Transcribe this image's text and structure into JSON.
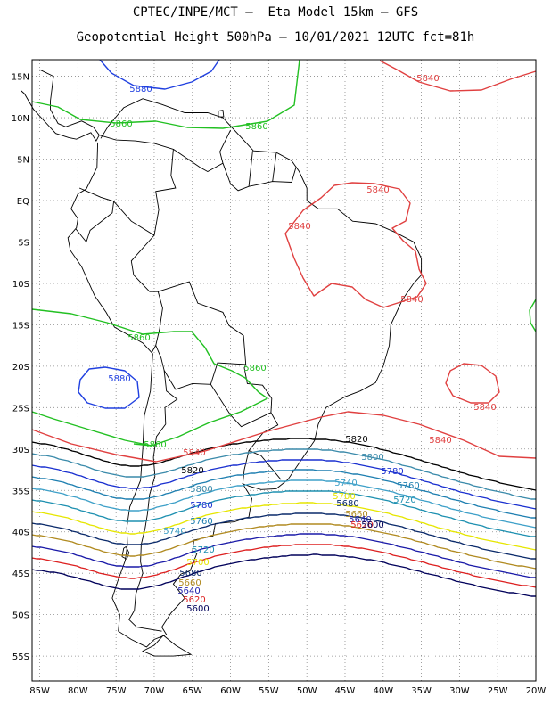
{
  "title": {
    "line1": "CPTEC/INPE/MCT –  Eta Model 15km – GFS",
    "line2": "Geopotential Height 500hPa – 10/01/2021 12UTC fct=81h"
  },
  "axes": {
    "lat_labels": [
      "15N",
      "10N",
      "5N",
      "EQ",
      "5S",
      "10S",
      "15S",
      "20S",
      "25S",
      "30S",
      "35S",
      "40S",
      "45S",
      "50S",
      "55S"
    ],
    "lon_labels": [
      "85W",
      "80W",
      "75W",
      "70W",
      "65W",
      "60W",
      "55W",
      "50W",
      "45W",
      "40W",
      "35W",
      "30W",
      "25W",
      "20W"
    ],
    "lat_range": [
      -58,
      17
    ],
    "lon_range": [
      -86,
      -20
    ],
    "grid": "dotted"
  },
  "contour_colors": {
    "5600": "#00005a",
    "5620": "#dd2020",
    "5640": "#1a1aa8",
    "5660": "#b08a20",
    "5680": "#0a2a6a",
    "5700": "#e6e600",
    "5720": "#1e90b0",
    "5740": "#3ea0c8",
    "5760": "#1e7fb0",
    "5780": "#1a30d0",
    "5800": "#3a8aaa",
    "5820": "#000000",
    "5840": "#e04040",
    "5860": "#22c022",
    "5880": "#2040e0"
  },
  "contour_labels": [
    {
      "text": "5880",
      "color": "#2040e0"
    },
    {
      "text": "5860",
      "color": "#22c022"
    },
    {
      "text": "5860",
      "color": "#22c022"
    },
    {
      "text": "5840",
      "color": "#e04040"
    },
    {
      "text": "5840",
      "color": "#e04040"
    },
    {
      "text": "5840",
      "color": "#e04040"
    },
    {
      "text": "5840",
      "color": "#e04040"
    },
    {
      "text": "5860",
      "color": "#22c022"
    },
    {
      "text": "5880",
      "color": "#2040e0"
    },
    {
      "text": "5860",
      "color": "#22c022"
    },
    {
      "text": "5840",
      "color": "#e04040"
    },
    {
      "text": "5860",
      "color": "#22c022"
    },
    {
      "text": "5840",
      "color": "#e04040"
    },
    {
      "text": "5840",
      "color": "#e04040"
    },
    {
      "text": "5820",
      "color": "#000000"
    },
    {
      "text": "5820",
      "color": "#000000"
    },
    {
      "text": "5800",
      "color": "#3a8aaa"
    },
    {
      "text": "5780",
      "color": "#1a30d0"
    },
    {
      "text": "5800",
      "color": "#3a8aaa"
    },
    {
      "text": "5760",
      "color": "#1e7fb0"
    },
    {
      "text": "5740",
      "color": "#3ea0c8"
    },
    {
      "text": "5720",
      "color": "#1e90b0"
    },
    {
      "text": "5780",
      "color": "#1a30d0"
    },
    {
      "text": "5700",
      "color": "#e6e600"
    },
    {
      "text": "5760",
      "color": "#1e7fb0"
    },
    {
      "text": "5680",
      "color": "#0a2a6a"
    },
    {
      "text": "5740",
      "color": "#3ea0c8"
    },
    {
      "text": "5660",
      "color": "#b08a20"
    },
    {
      "text": "5720",
      "color": "#1e90b0"
    },
    {
      "text": "5640",
      "color": "#1a1aa8"
    },
    {
      "text": "5700",
      "color": "#e6e600"
    },
    {
      "text": "5620",
      "color": "#dd2020"
    },
    {
      "text": "5680",
      "color": "#0a2a6a"
    },
    {
      "text": "5600",
      "color": "#00005a"
    },
    {
      "text": "5660",
      "color": "#b08a20"
    },
    {
      "text": "5640",
      "color": "#1a1aa8"
    },
    {
      "text": "5620",
      "color": "#dd2020"
    },
    {
      "text": "5600",
      "color": "#00005a"
    }
  ]
}
